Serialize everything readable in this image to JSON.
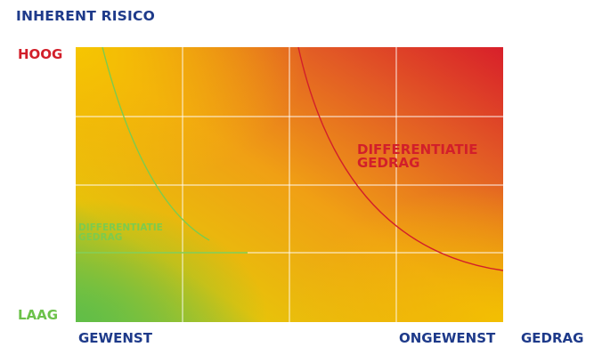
{
  "diagram": {
    "title": "INHERENT RISICO",
    "y_axis": {
      "high_label": "HOOG",
      "low_label": "LAAG"
    },
    "x_axis": {
      "left_label": "GEWENST",
      "right_label": "ONGEWENST",
      "axis_label": "GEDRAG"
    },
    "zones": {
      "high": {
        "line1": "DIFFERENTIATIE",
        "line2": "GEDRAG",
        "color": "#d21f2a"
      },
      "low": {
        "line1": "DIFFERENTIATIE",
        "line2": "GEDRAG",
        "color": "#7ccb4e"
      }
    },
    "colors": {
      "low_low": "#6cc24a",
      "mid": "#f4b400",
      "high_high": "#d9262a",
      "text_blue": "#1e3a8a"
    }
  }
}
